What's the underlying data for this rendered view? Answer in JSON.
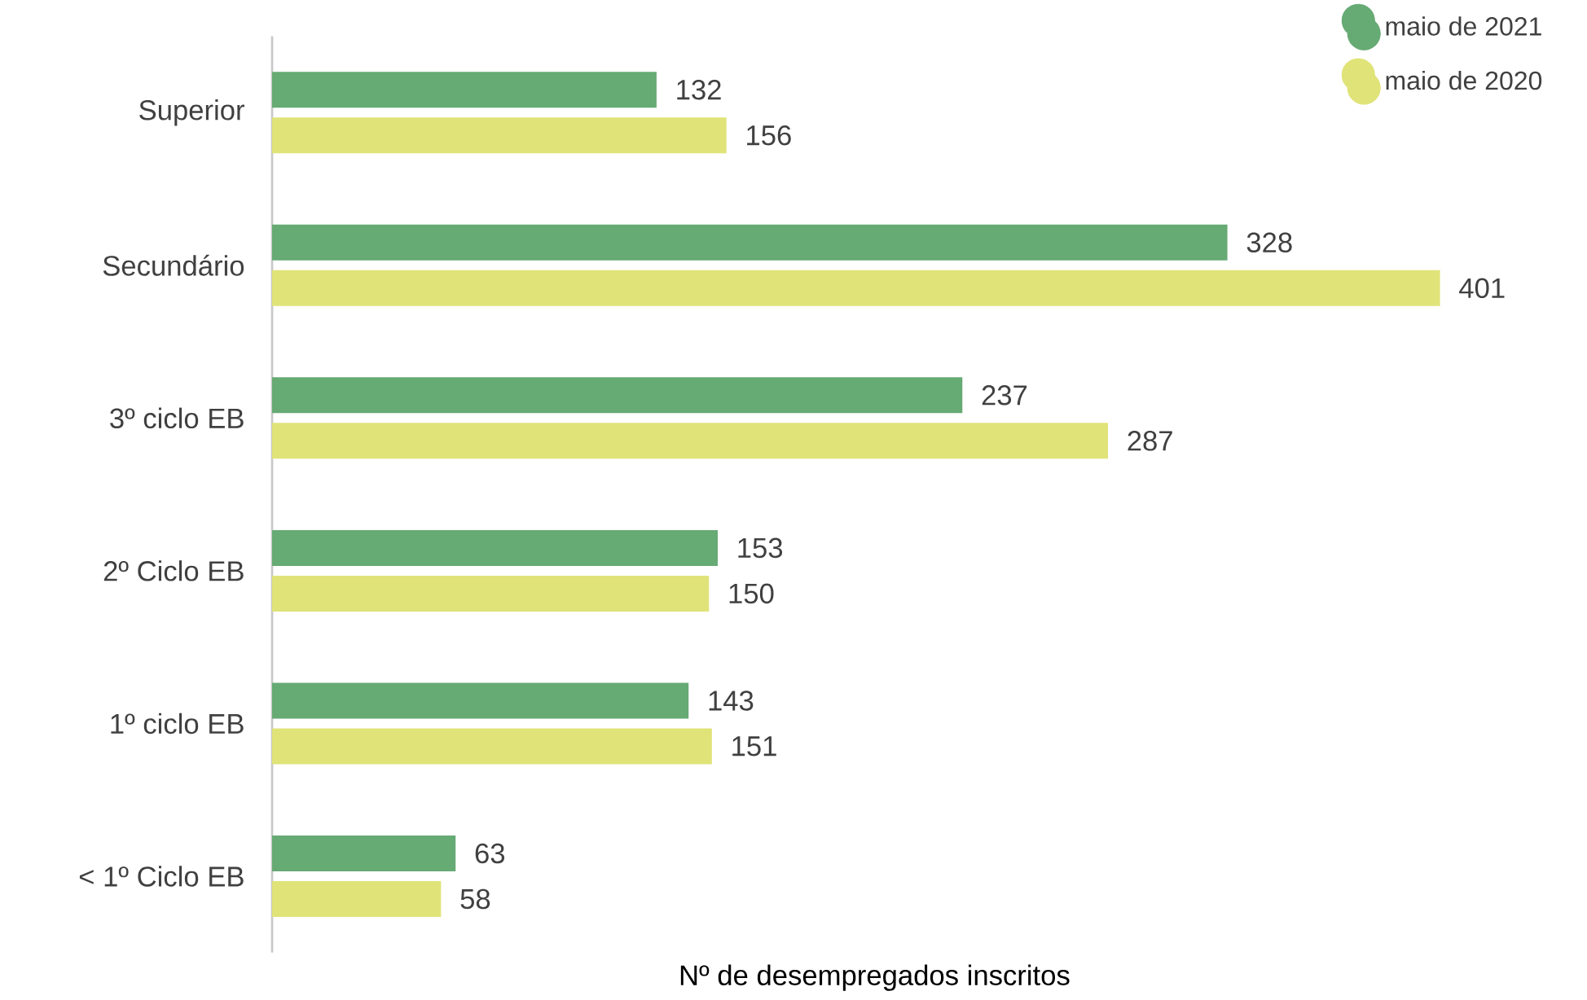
{
  "chart_data": {
    "type": "bar",
    "orientation": "horizontal",
    "xlabel": "Nº de desempregados inscritos",
    "categories": [
      "Superior",
      "Secundário",
      "3º ciclo EB",
      "2º Ciclo EB",
      "1º ciclo EB",
      "< 1º Ciclo EB"
    ],
    "series": [
      {
        "name": "maio de 2021",
        "color": "#66aa74",
        "values": [
          132,
          328,
          237,
          153,
          143,
          63
        ]
      },
      {
        "name": "maio de 2020",
        "color": "#e0e378",
        "values": [
          156,
          401,
          287,
          150,
          151,
          58
        ]
      }
    ],
    "data_labels": true,
    "legend": "top right"
  }
}
